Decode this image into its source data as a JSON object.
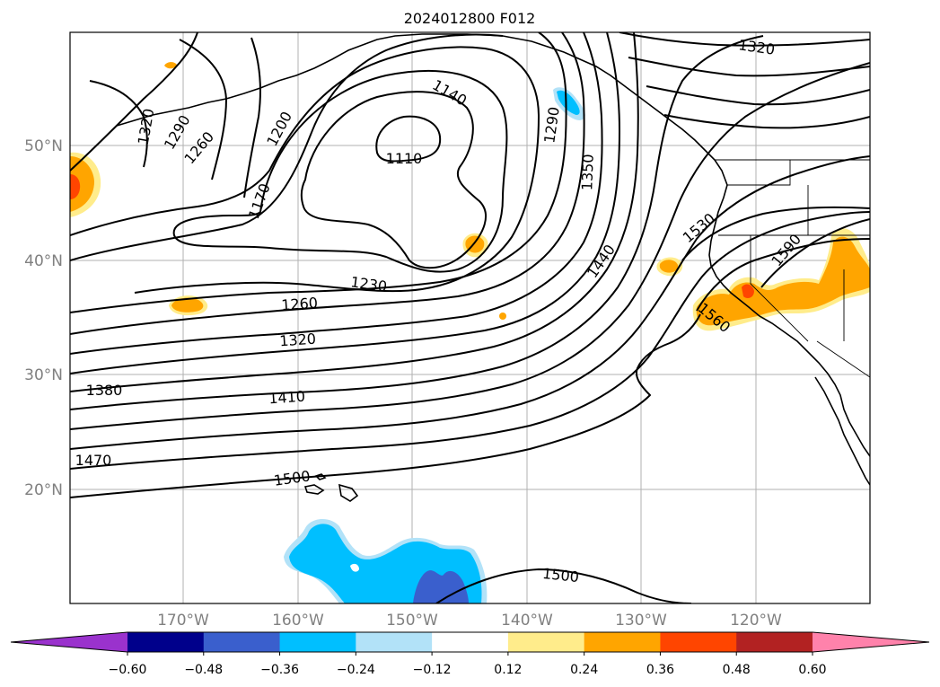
{
  "title": "2024012800 F012",
  "latitude_labels": [
    "50°N",
    "40°N",
    "30°N",
    "20°N"
  ],
  "longitude_labels": [
    "170°W",
    "160°W",
    "150°W",
    "140°W",
    "130°W",
    "120°W"
  ],
  "contour_labels": [
    "1320",
    "1290",
    "1260",
    "1200",
    "1140",
    "1110",
    "1170",
    "1290",
    "1350",
    "1320",
    "1440",
    "1530",
    "1590",
    "1560",
    "1230",
    "1260",
    "1320",
    "1380",
    "1410",
    "1470",
    "1500",
    "1500"
  ],
  "colorbar": {
    "ticks": [
      "−0.60",
      "−0.48",
      "−0.36",
      "−0.24",
      "−0.12",
      "0.12",
      "0.24",
      "0.36",
      "0.48",
      "0.60"
    ],
    "colors": [
      "#9a32cd",
      "#00008b",
      "#3a5fcd",
      "#00bfff",
      "#b2e2f8",
      "#ffffff",
      "#ffec8b",
      "#ffa500",
      "#ff4500",
      "#b22222",
      "#ff82ab"
    ]
  }
}
